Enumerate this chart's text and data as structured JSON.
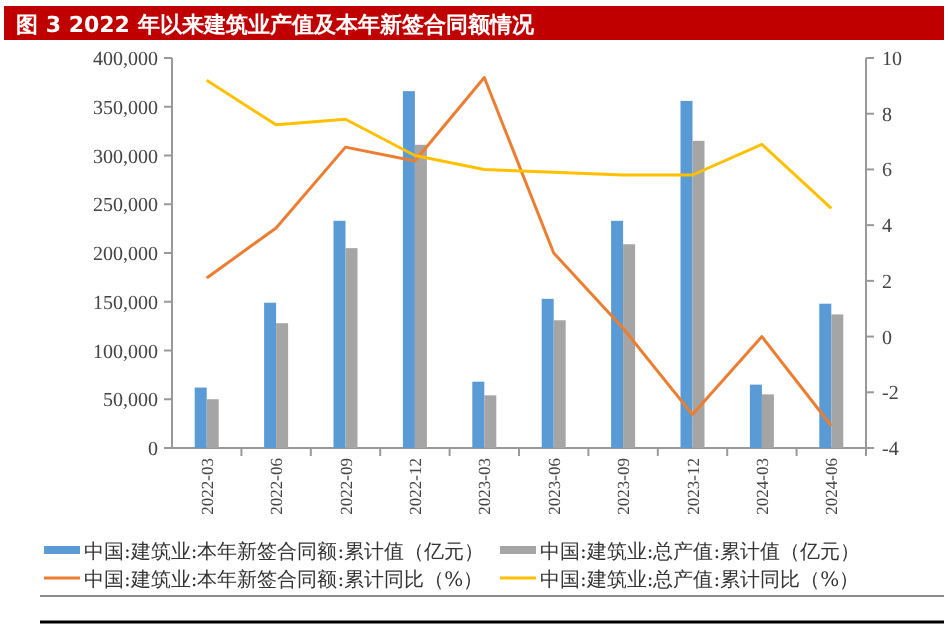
{
  "chart_data": {
    "type": "bar",
    "title": "图 3   2022 年以来建筑业产值及本年新签合同额情况",
    "categories": [
      "2022-03",
      "2022-06",
      "2022-09",
      "2022-12",
      "2023-03",
      "2023-06",
      "2023-09",
      "2023-12",
      "2024-03",
      "2024-06"
    ],
    "series": [
      {
        "name": "中国:建筑业:本年新签合同额:累计值（亿元）",
        "color": "#5b9bd5",
        "values": [
          62000,
          149000,
          233000,
          366000,
          68000,
          153000,
          233000,
          356000,
          65000,
          148000
        ]
      },
      {
        "name": "中国:建筑业:总产值:累计值（亿元）",
        "color": "#a5a5a5",
        "values": [
          50000,
          128000,
          205000,
          311000,
          54000,
          131000,
          209000,
          315000,
          55000,
          137000
        ]
      },
      {
        "name": "中国:建筑业:本年新签合同额:累计同比（%）",
        "type": "line",
        "axis": "y2",
        "color": "#ed7d31",
        "values": [
          2.1,
          3.9,
          6.8,
          6.3,
          9.3,
          3.0,
          0.3,
          -2.8,
          0.0,
          -3.2
        ]
      },
      {
        "name": "中国:建筑业:总产值:累计同比（%）",
        "type": "line",
        "axis": "y2",
        "color": "#ffc000",
        "values": [
          9.2,
          7.6,
          7.8,
          6.5,
          6.0,
          5.9,
          5.8,
          5.8,
          6.9,
          4.6
        ]
      }
    ],
    "ylim": [
      0,
      400000
    ],
    "yticks": [
      0,
      {
        "value": 50000,
        "label": "50,000"
      },
      {
        "value": 100000,
        "label": "100,000"
      },
      {
        "value": 150000,
        "label": "150,000"
      },
      {
        "value": 200000,
        "label": "200,000"
      },
      {
        "value": 250000,
        "label": "250,000"
      },
      {
        "value": 300000,
        "label": "300,000"
      },
      {
        "value": 350000,
        "label": "350,000"
      },
      {
        "value": 400000,
        "label": "400,000"
      }
    ],
    "y2lim": [
      -4,
      10
    ],
    "y2ticks": [
      -4,
      -2,
      0,
      2,
      4,
      6,
      8,
      10
    ],
    "legend": "bottom",
    "grid": false
  }
}
